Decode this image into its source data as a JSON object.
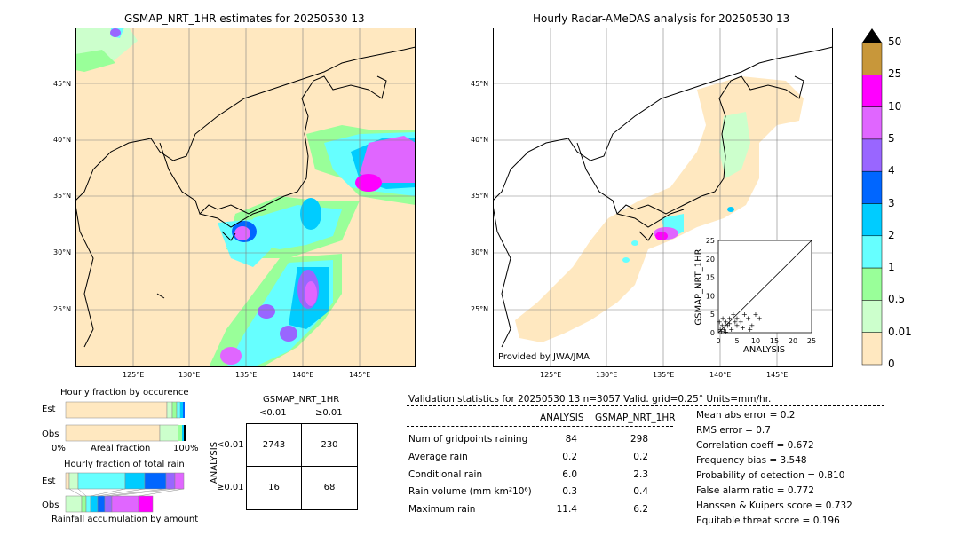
{
  "left_map": {
    "title": "GSMAP_NRT_1HR estimates for 20250530 13",
    "lat_labels": [
      "45°N",
      "40°N",
      "35°N",
      "30°N",
      "25°N"
    ],
    "lon_labels": [
      "125°E",
      "130°E",
      "135°E",
      "140°E",
      "145°E"
    ]
  },
  "right_map": {
    "title": "Hourly Radar-AMeDAS analysis for 20250530 13",
    "lat_labels": [
      "45°N",
      "40°N",
      "35°N",
      "30°N",
      "25°N"
    ],
    "lon_labels": [
      "125°E",
      "130°E",
      "135°E",
      "140°E",
      "145°E"
    ],
    "credit": "Provided by JWA/JMA"
  },
  "colorbar": {
    "labels": [
      "50",
      "25",
      "10",
      "5",
      "4",
      "3",
      "2",
      "1",
      "0.5",
      "0.01",
      "0"
    ],
    "colors": [
      "#c8973a",
      "#ff00ff",
      "#e066ff",
      "#9966ff",
      "#0066ff",
      "#00ccff",
      "#66ffff",
      "#99ff99",
      "#ccffcc",
      "#ffe8c0"
    ]
  },
  "inset": {
    "xlabel": "ANALYSIS",
    "ylabel": "GSMAP_NRT_1HR",
    "ticks": [
      "0",
      "5",
      "10",
      "15",
      "20",
      "25"
    ]
  },
  "fraction_occurrence": {
    "title": "Hourly fraction by occurence",
    "rows": [
      "Est",
      "Obs"
    ],
    "axis_left": "0%",
    "axis_mid": "Areal fraction",
    "axis_right": "100%"
  },
  "fraction_total": {
    "title": "Hourly fraction of total rain",
    "rows": [
      "Est",
      "Obs"
    ],
    "footer": "Rainfall accumulation by amount"
  },
  "contingency": {
    "title": "GSMAP_NRT_1HR",
    "col_headers": [
      "<0.01",
      "≥0.01"
    ],
    "row_title": "ANALYSIS",
    "row_headers": [
      "<0.01",
      "≥0.01"
    ],
    "cells": [
      [
        "2743",
        "230"
      ],
      [
        "16",
        "68"
      ]
    ]
  },
  "validation": {
    "header": "Validation statistics for 20250530 13  n=3057 Valid. grid=0.25° Units=mm/hr.",
    "col_analysis": "ANALYSIS",
    "col_gsmap": "GSMAP_NRT_1HR",
    "rows": [
      {
        "label": "Num of gridpoints raining",
        "analysis": "84",
        "gsmap": "298"
      },
      {
        "label": "Average rain",
        "analysis": "0.2",
        "gsmap": "0.2"
      },
      {
        "label": "Conditional rain",
        "analysis": "6.0",
        "gsmap": "2.3"
      },
      {
        "label": "Rain volume (mm km²10⁶)",
        "analysis": "0.3",
        "gsmap": "0.4"
      },
      {
        "label": "Maximum rain",
        "analysis": "11.4",
        "gsmap": "6.2"
      }
    ],
    "scores": [
      "Mean abs error =    0.2",
      "RMS error =    0.7",
      "Correlation coeff =  0.672",
      "Frequency bias =  3.548",
      "Probability of detection =  0.810",
      "False alarm ratio =  0.772",
      "Hanssen & Kuipers score =  0.732",
      "Equitable threat score =  0.196"
    ]
  },
  "chart_data": [
    {
      "type": "heatmap",
      "title": "GSMAP_NRT_1HR estimates for 20250530 13",
      "xlabel": "",
      "ylabel": "",
      "x_ticks": [
        "125°E",
        "130°E",
        "135°E",
        "140°E",
        "145°E"
      ],
      "y_ticks": [
        "25°N",
        "30°N",
        "35°N",
        "40°N",
        "45°N"
      ]
    },
    {
      "type": "heatmap",
      "title": "Hourly Radar-AMeDAS analysis for 20250530 13",
      "xlabel": "",
      "ylabel": "",
      "x_ticks": [
        "125°E",
        "130°E",
        "135°E",
        "140°E",
        "145°E"
      ],
      "y_ticks": [
        "25°N",
        "30°N",
        "35°N",
        "40°N",
        "45°N"
      ]
    },
    {
      "type": "scatter",
      "xlabel": "ANALYSIS",
      "ylabel": "GSMAP_NRT_1HR",
      "xlim": [
        0,
        25
      ],
      "ylim": [
        0,
        25
      ],
      "points": [
        [
          0.5,
          1
        ],
        [
          1,
          2
        ],
        [
          1.5,
          1
        ],
        [
          2,
          3
        ],
        [
          2.5,
          2
        ],
        [
          3,
          4
        ],
        [
          3.5,
          1
        ],
        [
          4,
          5
        ],
        [
          5,
          4
        ],
        [
          6,
          3
        ],
        [
          7,
          5
        ],
        [
          8,
          4
        ],
        [
          9,
          2
        ],
        [
          10,
          5
        ],
        [
          11,
          4
        ],
        [
          0.3,
          3
        ],
        [
          0.8,
          0.5
        ],
        [
          2,
          0.3
        ],
        [
          3,
          2.5
        ],
        [
          5,
          2
        ],
        [
          6.5,
          1.5
        ],
        [
          8.5,
          1
        ],
        [
          1.2,
          4
        ],
        [
          4.5,
          3
        ]
      ]
    }
  ]
}
